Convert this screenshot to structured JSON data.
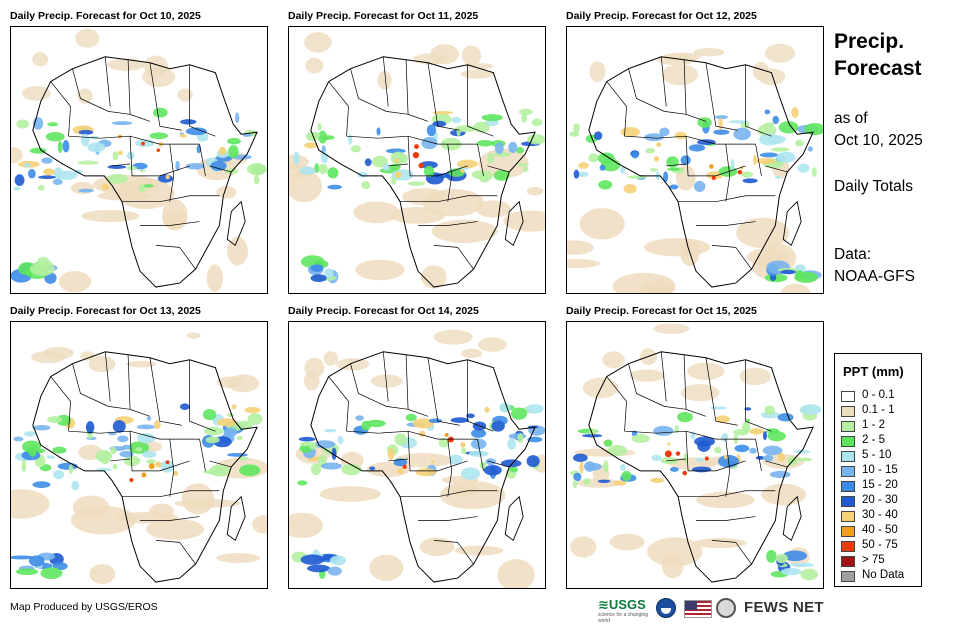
{
  "panels": [
    {
      "title": "Daily Precip. Forecast for Oct 10, 2025"
    },
    {
      "title": "Daily Precip. Forecast for Oct 11, 2025"
    },
    {
      "title": "Daily Precip. Forecast for Oct 12, 2025"
    },
    {
      "title": "Daily Precip. Forecast for Oct 13, 2025"
    },
    {
      "title": "Daily Precip. Forecast for Oct 14, 2025"
    },
    {
      "title": "Daily Precip. Forecast for Oct 15, 2025"
    }
  ],
  "side": {
    "title_line1": "Precip.",
    "title_line2": "Forecast",
    "asof_line1": "as of",
    "asof_line2": "Oct 10, 2025",
    "totals": "Daily Totals",
    "data_line1": "Data:",
    "data_line2": "NOAA-GFS"
  },
  "legend": {
    "title": "PPT (mm)",
    "items": [
      {
        "label": "0 - 0.1",
        "color": "#ffffff"
      },
      {
        "label": "0.1 - 1",
        "color": "#eedcbe"
      },
      {
        "label": "1 - 2",
        "color": "#b4f0a0"
      },
      {
        "label": "2 - 5",
        "color": "#5ee65e"
      },
      {
        "label": "5 - 10",
        "color": "#aee6f0"
      },
      {
        "label": "10 - 15",
        "color": "#78b4f0"
      },
      {
        "label": "15 - 20",
        "color": "#3c8ce6"
      },
      {
        "label": "20 - 30",
        "color": "#1e5ad2"
      },
      {
        "label": "30 - 40",
        "color": "#f5d278"
      },
      {
        "label": "40 - 50",
        "color": "#f0a01e"
      },
      {
        "label": "50 - 75",
        "color": "#f03c0a"
      },
      {
        "label": "> 75",
        "color": "#a01414"
      },
      {
        "label": "No Data",
        "color": "#a0a0a0"
      }
    ]
  },
  "footer": {
    "credit": "Map Produced by USGS/EROS",
    "usgs": "≋USGS",
    "usgs_tagline": "science for a changing world",
    "fews": "FEWS NET"
  },
  "icons": {
    "noaa": "noaa-logo-icon",
    "flag": "us-flag-icon",
    "seal": "state-department-seal-icon"
  }
}
